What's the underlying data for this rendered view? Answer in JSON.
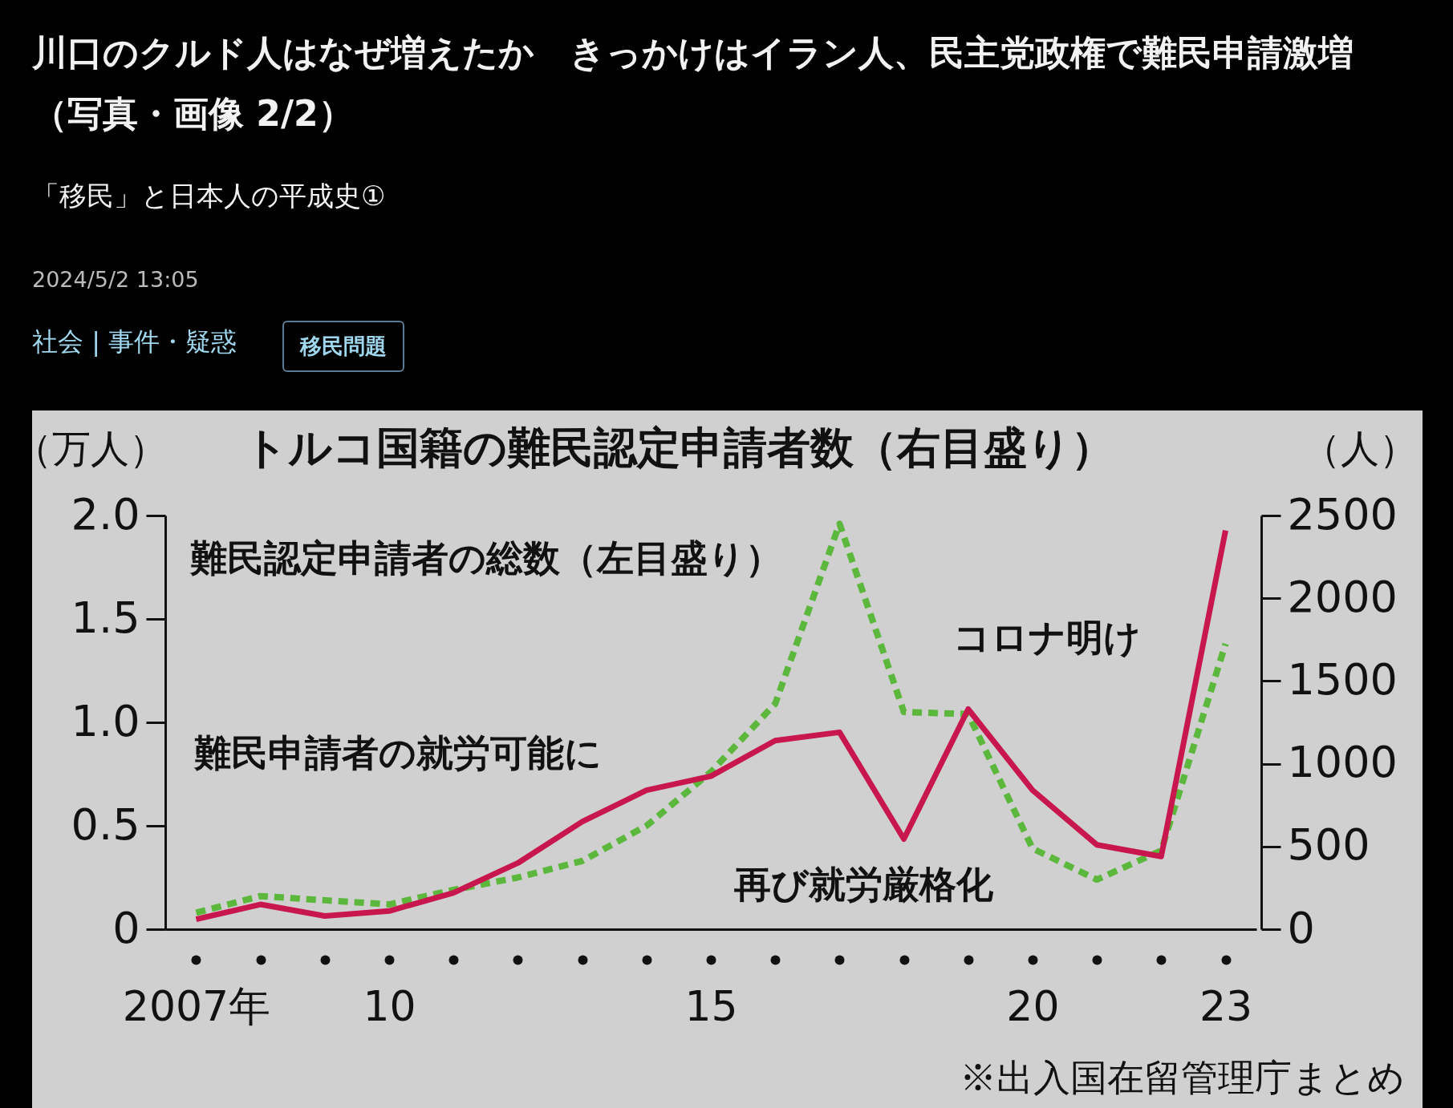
{
  "chart_data": {
    "type": "line",
    "title": "川口のクルド人はなぜ増えたか　きっかけはイラン人、民主党政権で難民申請激増（写真・画像 2/2）",
    "subtitle": "「移民」と日本人の平成史①",
    "categories": [
      "2007年",
      null,
      null,
      "10",
      null,
      null,
      null,
      null,
      "15",
      null,
      null,
      null,
      null,
      "20",
      null,
      null,
      "23"
    ],
    "ylabel": "（万人）",
    "y2label": "（人）",
    "ylim": [
      0,
      2
    ],
    "yticks": [
      0,
      0.5,
      {
        "value": 1,
        "label": "1.0"
      },
      {
        "value": 1.5,
        "label": "1.5"
      },
      {
        "value": 2,
        "label": "2.0"
      }
    ],
    "y2lim": [
      0,
      2500
    ],
    "y2ticks": [
      0,
      500,
      1000,
      1500,
      2000,
      2500
    ],
    "series": [
      {
        "name": "難民認定申請者の総数（左目盛り）",
        "color": "#5cb83c",
        "line_style": "dashed",
        "values": [
          0.08,
          0.16,
          0.14,
          0.12,
          0.19,
          0.25,
          0.33,
          0.5,
          0.76,
          1.09,
          1.96,
          1.05,
          1.04,
          0.39,
          0.24,
          0.38,
          1.38
        ]
      },
      {
        "name": "トルコ国籍の難民認定申請者数（右目盛り）",
        "color": "#c8174f",
        "line_style": "solid",
        "axis": "y2",
        "values": [
          60,
          150,
          80,
          110,
          220,
          400,
          650,
          840,
          925,
          1140,
          1190,
          545,
          1330,
          840,
          510,
          440,
          2410
        ]
      }
    ],
    "annotations": [
      "2024/5/2 13:05",
      "社会 | 事件・疑惑",
      "移民問題",
      "難民申請者の就労可能に",
      "再び就労厳格化",
      "コロナ明け",
      "※出入国在留管理庁まとめ"
    ]
  }
}
